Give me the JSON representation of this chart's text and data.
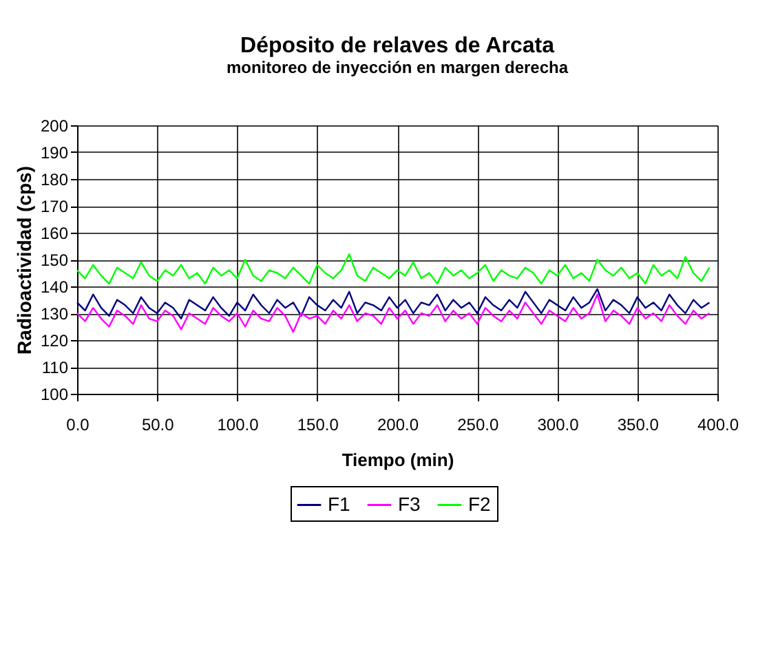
{
  "chart_data": {
    "type": "line",
    "title": "Déposito de relaves de Arcata",
    "subtitle": "monitoreo de inyección en margen derecha",
    "xlabel": "Tiempo (min)",
    "ylabel": "Radioactividad (cps)",
    "x": [
      0,
      5,
      10,
      15,
      20,
      25,
      30,
      35,
      40,
      45,
      50,
      55,
      60,
      65,
      70,
      75,
      80,
      85,
      90,
      95,
      100,
      105,
      110,
      115,
      120,
      125,
      130,
      135,
      140,
      145,
      150,
      155,
      160,
      165,
      170,
      175,
      180,
      185,
      190,
      195,
      200,
      205,
      210,
      215,
      220,
      225,
      230,
      235,
      240,
      245,
      250,
      255,
      260,
      265,
      270,
      275,
      280,
      285,
      290,
      295,
      300,
      305,
      310,
      315,
      320,
      325,
      330,
      335,
      340,
      345,
      350,
      355,
      360,
      365,
      370,
      375,
      380,
      385,
      390,
      395
    ],
    "series": [
      {
        "name": "F1",
        "color": "#000080",
        "values": [
          134,
          131,
          137,
          132,
          129,
          135,
          133,
          130,
          136,
          132,
          130,
          134,
          132,
          128,
          135,
          133,
          131,
          136,
          132,
          129,
          134,
          131,
          137,
          133,
          130,
          135,
          132,
          134,
          129,
          136,
          133,
          131,
          135,
          132,
          138,
          130,
          134,
          133,
          131,
          136,
          132,
          135,
          130,
          134,
          133,
          137,
          131,
          135,
          132,
          134,
          130,
          136,
          133,
          131,
          135,
          132,
          138,
          134,
          130,
          135,
          133,
          131,
          136,
          132,
          134,
          139,
          131,
          135,
          133,
          130,
          136,
          132,
          134,
          131,
          137,
          133,
          130,
          135,
          132,
          134
        ]
      },
      {
        "name": "F3",
        "color": "#ff00ff",
        "values": [
          130,
          127,
          132,
          128,
          125,
          131,
          129,
          126,
          133,
          128,
          127,
          131,
          129,
          124,
          130,
          128,
          126,
          132,
          129,
          127,
          130,
          125,
          131,
          128,
          127,
          132,
          129,
          123,
          130,
          128,
          129,
          126,
          131,
          128,
          133,
          127,
          130,
          129,
          126,
          132,
          128,
          131,
          126,
          130,
          129,
          133,
          127,
          131,
          128,
          130,
          126,
          132,
          129,
          127,
          131,
          128,
          134,
          130,
          126,
          131,
          129,
          127,
          132,
          128,
          130,
          137,
          127,
          131,
          129,
          126,
          132,
          128,
          130,
          127,
          133,
          129,
          126,
          131,
          128,
          130
        ]
      },
      {
        "name": "F2",
        "color": "#00ff00",
        "values": [
          146,
          143,
          148,
          144,
          141,
          147,
          145,
          143,
          149,
          144,
          142,
          146,
          144,
          148,
          143,
          145,
          141,
          147,
          144,
          146,
          143,
          150,
          144,
          142,
          146,
          145,
          143,
          147,
          144,
          141,
          148,
          145,
          143,
          146,
          152,
          144,
          142,
          147,
          145,
          143,
          146,
          144,
          149,
          143,
          145,
          141,
          147,
          144,
          146,
          143,
          145,
          148,
          142,
          146,
          144,
          143,
          147,
          145,
          141,
          146,
          144,
          148,
          143,
          145,
          142,
          150,
          146,
          144,
          147,
          143,
          145,
          141,
          148,
          144,
          146,
          143,
          151,
          145,
          142,
          147
        ]
      }
    ],
    "xlim": [
      0,
      400
    ],
    "xticks": [
      {
        "value": 0,
        "label": "0.0"
      },
      {
        "value": 50,
        "label": "50.0"
      },
      {
        "value": 100,
        "label": "100.0"
      },
      {
        "value": 150,
        "label": "150.0"
      },
      {
        "value": 200,
        "label": "200.0"
      },
      {
        "value": 250,
        "label": "250.0"
      },
      {
        "value": 300,
        "label": "300.0"
      },
      {
        "value": 350,
        "label": "350.0"
      },
      {
        "value": 400,
        "label": "400.0"
      }
    ],
    "ylim": [
      100,
      200
    ],
    "yticks": [
      100,
      110,
      120,
      130,
      140,
      150,
      160,
      170,
      180,
      190,
      200
    ],
    "grid": true,
    "legend": "bottom",
    "marker": "none",
    "line_style": "solid"
  }
}
